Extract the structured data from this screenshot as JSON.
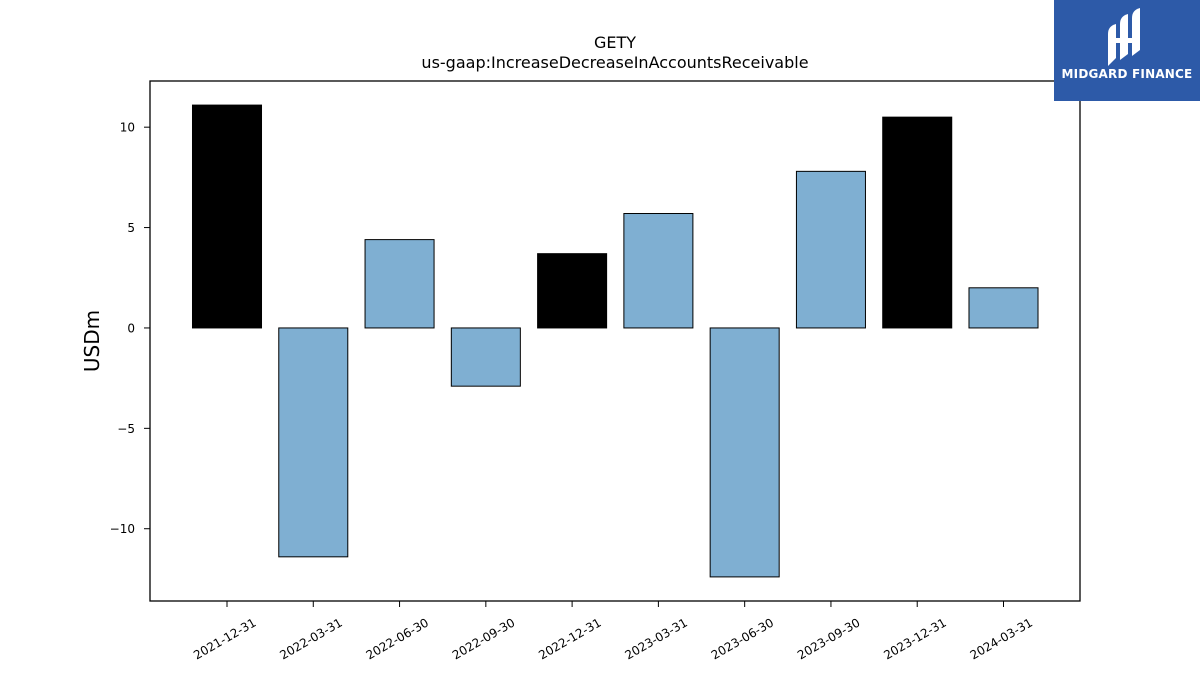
{
  "chart_data": {
    "type": "bar",
    "title": "GETY",
    "subtitle": "us-gaap:IncreaseDecreaseInAccountsReceivable",
    "xlabel": "",
    "ylabel": "USDm",
    "categories": [
      "2021-12-31",
      "2022-03-31",
      "2022-06-30",
      "2022-09-30",
      "2022-12-31",
      "2023-03-31",
      "2023-06-30",
      "2023-09-30",
      "2023-12-31",
      "2024-03-31"
    ],
    "values": [
      11.1,
      -11.4,
      4.4,
      -2.9,
      3.7,
      5.7,
      -12.4,
      7.8,
      10.5,
      2.0
    ],
    "bar_colors": [
      "#000000",
      "#7fafd2",
      "#7fafd2",
      "#7fafd2",
      "#000000",
      "#7fafd2",
      "#7fafd2",
      "#7fafd2",
      "#000000",
      "#7fafd2"
    ],
    "edge_color": "#000000",
    "yticks": [
      10,
      5,
      0,
      -5,
      -10
    ],
    "ytick_labels": [
      "10",
      "5",
      "0",
      "−5",
      "−10"
    ],
    "ylim": [
      -13.6,
      12.3
    ],
    "grid": false,
    "legend": "none"
  },
  "logo": {
    "text": "MIDGARD FINANCE",
    "background": "#2d5aa8",
    "icon": "midgard-logo-icon"
  }
}
